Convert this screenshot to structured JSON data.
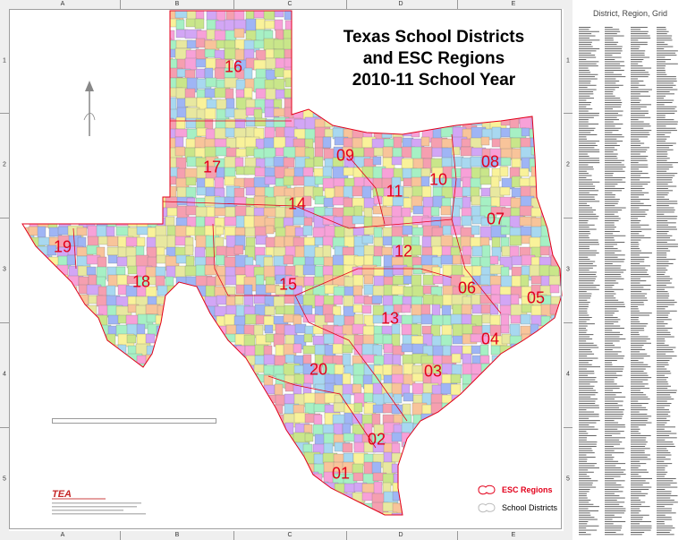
{
  "title_lines": [
    "Texas School Districts",
    "and ESC Regions",
    "2010-11 School Year"
  ],
  "grid": {
    "columns": [
      "A",
      "B",
      "C",
      "D",
      "E"
    ],
    "rows": [
      "1",
      "2",
      "3",
      "4",
      "5"
    ]
  },
  "regions": [
    {
      "number": "01"
    },
    {
      "number": "02"
    },
    {
      "number": "03"
    },
    {
      "number": "04"
    },
    {
      "number": "05"
    },
    {
      "number": "06"
    },
    {
      "number": "07"
    },
    {
      "number": "08"
    },
    {
      "number": "09"
    },
    {
      "number": "10"
    },
    {
      "number": "11"
    },
    {
      "number": "12"
    },
    {
      "number": "13"
    },
    {
      "number": "14"
    },
    {
      "number": "15"
    },
    {
      "number": "16"
    },
    {
      "number": "17"
    },
    {
      "number": "18"
    },
    {
      "number": "19"
    },
    {
      "number": "20"
    }
  ],
  "legend": {
    "regions_label": "ESC Regions",
    "districts_label": "School Districts",
    "regions_color": "#e3001b"
  },
  "logo": {
    "mark": "TEA"
  },
  "index_panel": {
    "title": "District, Region, Grid"
  },
  "colors": {
    "region_label": "#e3001b",
    "region_boundary": "#e3001b",
    "district_palette": [
      "#f7a1d8",
      "#c9e68a",
      "#a8d8f0",
      "#f9f29a",
      "#d2a6f5",
      "#a6f0c4",
      "#f8c49a",
      "#9fb5f5",
      "#f59fb0",
      "#e8e8a0"
    ]
  }
}
